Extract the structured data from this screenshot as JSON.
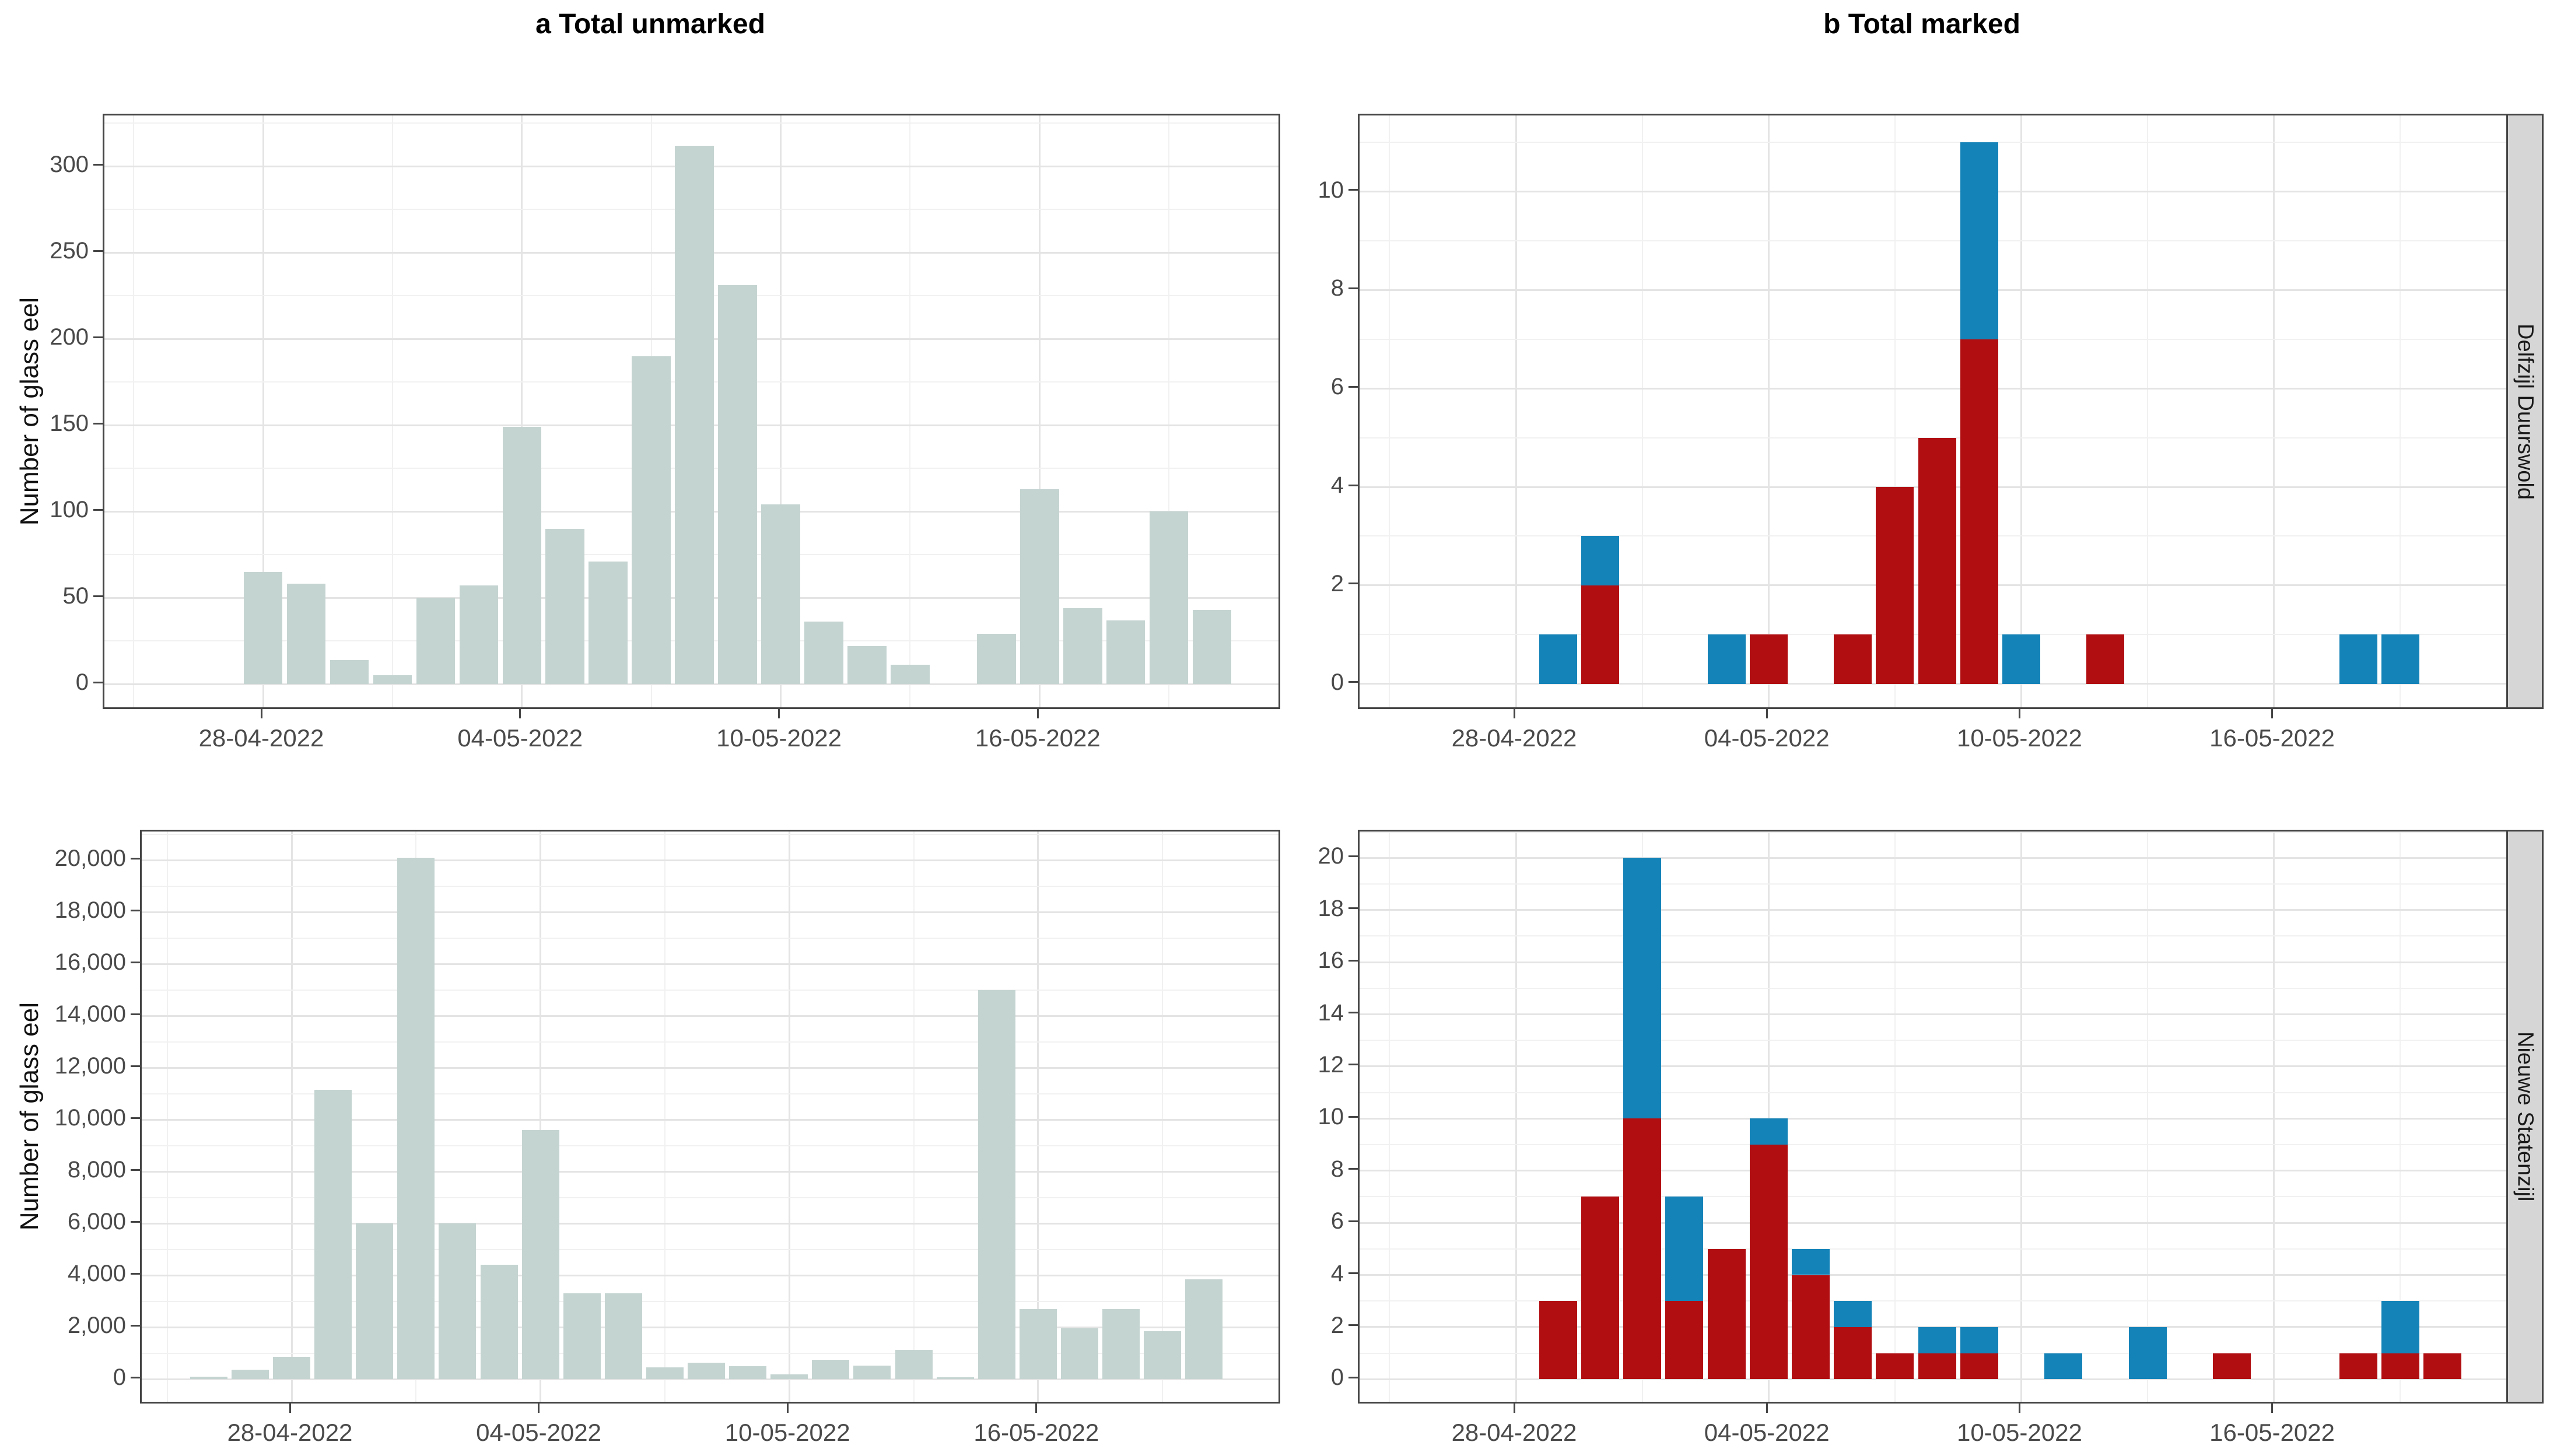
{
  "figure": {
    "titles": {
      "a": "a Total unmarked",
      "b": "b Total marked"
    },
    "y_axis_title": "Number of glass eel",
    "facet_labels": {
      "top_row": "Delfzijl Duurswold",
      "bottom_row": "Nieuwe Statenzijl"
    },
    "x_tick_labels": [
      "28-04-2022",
      "04-05-2022",
      "10-05-2022",
      "16-05-2022"
    ],
    "colors": {
      "unmarked_bar": "#c4d4d1",
      "marked_red": "#b10e12",
      "marked_blue": "#1483b8",
      "strip_bg": "#d6d6d6",
      "panel_border": "#454545",
      "grid_major": "#e4e4e4",
      "grid_minor": "#f1f1f1",
      "axis_text": "#4a4a4a"
    }
  },
  "chart_data": [
    {
      "id": "total-unmarked-delfzijl-duurswold",
      "type": "bar",
      "panel": "top-left",
      "title": "a Total unmarked",
      "ylabel": "Number of glass eel",
      "legend_position": "none",
      "grid": "on",
      "x_ticks": [
        "28-04-2022",
        "04-05-2022",
        "10-05-2022",
        "16-05-2022"
      ],
      "ylim": [
        0,
        328
      ],
      "yticks": [
        0,
        50,
        100,
        150,
        200,
        250,
        300
      ],
      "ytick_labels": [
        "0",
        "50",
        "100",
        "150",
        "200",
        "250",
        "300"
      ],
      "bars": [
        {
          "date": "28-04-2022",
          "value": 65
        },
        {
          "date": "29-04-2022",
          "value": 58
        },
        {
          "date": "30-04-2022",
          "value": 14
        },
        {
          "date": "01-05-2022",
          "value": 5
        },
        {
          "date": "02-05-2022",
          "value": 50
        },
        {
          "date": "03-05-2022",
          "value": 57
        },
        {
          "date": "04-05-2022",
          "value": 149
        },
        {
          "date": "05-05-2022",
          "value": 90
        },
        {
          "date": "06-05-2022",
          "value": 71
        },
        {
          "date": "07-05-2022",
          "value": 190
        },
        {
          "date": "08-05-2022",
          "value": 312
        },
        {
          "date": "09-05-2022",
          "value": 231
        },
        {
          "date": "10-05-2022",
          "value": 104
        },
        {
          "date": "11-05-2022",
          "value": 36
        },
        {
          "date": "12-05-2022",
          "value": 22
        },
        {
          "date": "13-05-2022",
          "value": 11
        },
        {
          "date": "15-05-2022",
          "value": 29
        },
        {
          "date": "16-05-2022",
          "value": 113
        },
        {
          "date": "17-05-2022",
          "value": 44
        },
        {
          "date": "18-05-2022",
          "value": 37
        },
        {
          "date": "19-05-2022",
          "value": 100
        },
        {
          "date": "20-05-2022",
          "value": 43
        }
      ]
    },
    {
      "id": "total-marked-delfzijl-duurswold",
      "type": "stacked-bar",
      "panel": "top-right",
      "title": "b Total marked",
      "facet_label": "Delfzijl Duurswold",
      "series": [
        "red",
        "blue"
      ],
      "legend_position": "none",
      "grid": "on",
      "x_ticks": [
        "28-04-2022",
        "04-05-2022",
        "10-05-2022",
        "16-05-2022"
      ],
      "ylim": [
        0,
        11.6
      ],
      "yticks": [
        0,
        2,
        4,
        6,
        8,
        10
      ],
      "ytick_labels": [
        "0",
        "2",
        "4",
        "6",
        "8",
        "10"
      ],
      "bars": [
        {
          "date": "29-04-2022",
          "red": 0,
          "blue": 1
        },
        {
          "date": "30-04-2022",
          "red": 2,
          "blue": 1
        },
        {
          "date": "03-05-2022",
          "red": 0,
          "blue": 1
        },
        {
          "date": "04-05-2022",
          "red": 1,
          "blue": 0
        },
        {
          "date": "06-05-2022",
          "red": 1,
          "blue": 0
        },
        {
          "date": "07-05-2022",
          "red": 4,
          "blue": 0
        },
        {
          "date": "08-05-2022",
          "red": 5,
          "blue": 0
        },
        {
          "date": "09-05-2022",
          "red": 7,
          "blue": 4
        },
        {
          "date": "10-05-2022",
          "red": 0,
          "blue": 1
        },
        {
          "date": "12-05-2022",
          "red": 1,
          "blue": 0
        },
        {
          "date": "18-05-2022",
          "red": 0,
          "blue": 1
        },
        {
          "date": "19-05-2022",
          "red": 0,
          "blue": 1
        }
      ]
    },
    {
      "id": "total-unmarked-nieuwe-statenzijl",
      "type": "bar",
      "panel": "bottom-left",
      "title": "a Total unmarked",
      "ylabel": "Number of glass eel",
      "legend_position": "none",
      "grid": "on",
      "x_ticks": [
        "28-04-2022",
        "04-05-2022",
        "10-05-2022",
        "16-05-2022"
      ],
      "ylim": [
        0,
        21105
      ],
      "yticks": [
        0,
        2000,
        4000,
        6000,
        8000,
        10000,
        12000,
        14000,
        16000,
        18000,
        20000
      ],
      "ytick_labels": [
        "0",
        "2,000",
        "4,000",
        "6,000",
        "8,000",
        "10,000",
        "12,000",
        "14,000",
        "16,000",
        "18,000",
        "20,000"
      ],
      "bars": [
        {
          "date": "26-04-2022",
          "value": 100
        },
        {
          "date": "27-04-2022",
          "value": 350
        },
        {
          "date": "28-04-2022",
          "value": 850
        },
        {
          "date": "29-04-2022",
          "value": 11150
        },
        {
          "date": "30-04-2022",
          "value": 6000
        },
        {
          "date": "01-05-2022",
          "value": 20100
        },
        {
          "date": "02-05-2022",
          "value": 6000
        },
        {
          "date": "03-05-2022",
          "value": 4400
        },
        {
          "date": "04-05-2022",
          "value": 9600
        },
        {
          "date": "05-05-2022",
          "value": 3300
        },
        {
          "date": "06-05-2022",
          "value": 3300
        },
        {
          "date": "07-05-2022",
          "value": 450
        },
        {
          "date": "08-05-2022",
          "value": 620
        },
        {
          "date": "09-05-2022",
          "value": 500
        },
        {
          "date": "10-05-2022",
          "value": 190
        },
        {
          "date": "11-05-2022",
          "value": 750
        },
        {
          "date": "12-05-2022",
          "value": 510
        },
        {
          "date": "13-05-2022",
          "value": 1120
        },
        {
          "date": "14-05-2022",
          "value": 70
        },
        {
          "date": "15-05-2022",
          "value": 15000
        },
        {
          "date": "16-05-2022",
          "value": 2700
        },
        {
          "date": "17-05-2022",
          "value": 1960
        },
        {
          "date": "18-05-2022",
          "value": 2700
        },
        {
          "date": "19-05-2022",
          "value": 1840
        },
        {
          "date": "20-05-2022",
          "value": 3840
        }
      ]
    },
    {
      "id": "total-marked-nieuwe-statenzijl",
      "type": "stacked-bar",
      "panel": "bottom-right",
      "title": "b Total marked",
      "facet_label": "Nieuwe Statenzijl",
      "series": [
        "red",
        "blue"
      ],
      "legend_position": "none",
      "grid": "on",
      "x_ticks": [
        "28-04-2022",
        "04-05-2022",
        "10-05-2022",
        "16-05-2022"
      ],
      "ylim": [
        0,
        21
      ],
      "yticks": [
        0,
        2,
        4,
        6,
        8,
        10,
        12,
        14,
        16,
        18,
        20
      ],
      "ytick_labels": [
        "0",
        "2",
        "4",
        "6",
        "8",
        "10",
        "12",
        "14",
        "16",
        "18",
        "20"
      ],
      "bars": [
        {
          "date": "29-04-2022",
          "red": 3,
          "blue": 0
        },
        {
          "date": "30-04-2022",
          "red": 7,
          "blue": 0
        },
        {
          "date": "01-05-2022",
          "red": 10,
          "blue": 10
        },
        {
          "date": "02-05-2022",
          "red": 3,
          "blue": 4
        },
        {
          "date": "03-05-2022",
          "red": 5,
          "blue": 0
        },
        {
          "date": "04-05-2022",
          "red": 9,
          "blue": 1
        },
        {
          "date": "05-05-2022",
          "red": 4,
          "blue": 1
        },
        {
          "date": "06-05-2022",
          "red": 2,
          "blue": 1
        },
        {
          "date": "07-05-2022",
          "red": 1,
          "blue": 0
        },
        {
          "date": "08-05-2022",
          "red": 1,
          "blue": 1
        },
        {
          "date": "09-05-2022",
          "red": 1,
          "blue": 1
        },
        {
          "date": "11-05-2022",
          "red": 0,
          "blue": 1
        },
        {
          "date": "13-05-2022",
          "red": 0,
          "blue": 2
        },
        {
          "date": "15-05-2022",
          "red": 1,
          "blue": 0
        },
        {
          "date": "18-05-2022",
          "red": 1,
          "blue": 0
        },
        {
          "date": "19-05-2022",
          "red": 1,
          "blue": 2
        },
        {
          "date": "20-05-2022",
          "red": 1,
          "blue": 0
        }
      ]
    }
  ]
}
